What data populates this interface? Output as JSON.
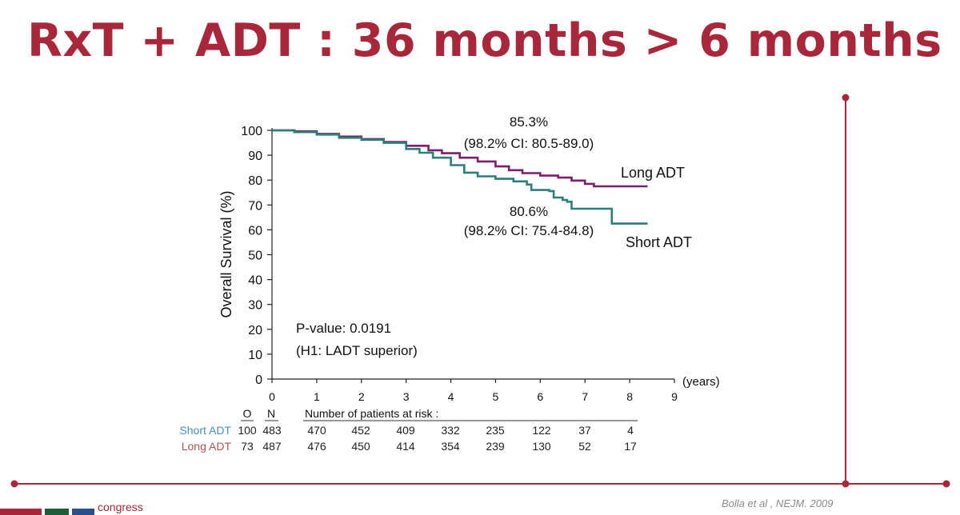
{
  "slide": {
    "title": "RxT + ADT : 36 months > 6 months",
    "citation": "Bolla et al , NEJM. 2009",
    "footer_logo_text": "congress",
    "accent_color": "#a8273a"
  },
  "chart_data": {
    "type": "line",
    "title": "",
    "xlabel": "(years)",
    "ylabel": "Overall Survival (%)",
    "xlim": [
      0,
      9
    ],
    "ylim": [
      0,
      100
    ],
    "xticks": [
      0,
      1,
      2,
      3,
      4,
      5,
      6,
      7,
      8,
      9
    ],
    "yticks": [
      0,
      10,
      20,
      30,
      40,
      50,
      60,
      70,
      80,
      90,
      100
    ],
    "grid": false,
    "series": [
      {
        "name": "Long ADT",
        "color": "#7b1f6e",
        "points": [
          [
            0,
            100
          ],
          [
            0.5,
            99.6
          ],
          [
            1,
            98.6
          ],
          [
            1.5,
            97.5
          ],
          [
            2,
            96.5
          ],
          [
            2.5,
            95.3
          ],
          [
            3,
            93.8
          ],
          [
            3.5,
            92
          ],
          [
            3.8,
            90.8
          ],
          [
            4.2,
            89
          ],
          [
            4.6,
            87.5
          ],
          [
            5,
            85.5
          ],
          [
            5.3,
            84
          ],
          [
            5.6,
            82.8
          ],
          [
            6,
            81.8
          ],
          [
            6.4,
            81
          ],
          [
            6.7,
            79.8
          ],
          [
            7,
            78.5
          ],
          [
            7.2,
            77.5
          ],
          [
            7.6,
            77.5
          ],
          [
            8.4,
            77.5
          ]
        ],
        "end_label": "Long ADT"
      },
      {
        "name": "Short ADT",
        "color": "#2b7f7a",
        "points": [
          [
            0,
            100
          ],
          [
            0.5,
            99.3
          ],
          [
            1,
            98.3
          ],
          [
            1.5,
            97
          ],
          [
            2,
            96.2
          ],
          [
            2.5,
            95
          ],
          [
            3,
            92.5
          ],
          [
            3.3,
            91
          ],
          [
            3.6,
            89
          ],
          [
            4,
            86
          ],
          [
            4.3,
            83
          ],
          [
            4.6,
            81.5
          ],
          [
            5,
            80.5
          ],
          [
            5.4,
            79.5
          ],
          [
            5.7,
            78.2
          ],
          [
            5.8,
            76
          ],
          [
            6.2,
            75.6
          ],
          [
            6.3,
            73
          ],
          [
            6.5,
            72
          ],
          [
            6.6,
            71.3
          ],
          [
            6.7,
            68.5
          ],
          [
            7.2,
            68.5
          ],
          [
            7.6,
            68.5
          ],
          [
            7.6,
            62.5
          ],
          [
            8.4,
            62.5
          ]
        ],
        "end_label": "Short ADT"
      }
    ],
    "annotations": {
      "long_value": "85.3%",
      "long_ci": "(98.2% CI: 80.5-89.0)",
      "short_value": "80.6%",
      "short_ci": "(98.2% CI: 75.4-84.8)",
      "p_value": "P-value: 0.0191",
      "hypothesis": "(H1: LADT superior)"
    },
    "risk_table": {
      "header_o": "O",
      "header_n": "N",
      "header_label": "Number of patients at risk :",
      "rows": [
        {
          "name": "Short ADT",
          "color": "#4a90c2",
          "O": "100",
          "N": "483",
          "values": [
            "470",
            "452",
            "409",
            "332",
            "235",
            "122",
            "37",
            "4"
          ]
        },
        {
          "name": "Long ADT",
          "color": "#b5524f",
          "O": "73",
          "N": "487",
          "values": [
            "476",
            "450",
            "414",
            "354",
            "239",
            "130",
            "52",
            "17"
          ]
        }
      ]
    }
  },
  "decor": {
    "line_color": "#a8273a"
  }
}
